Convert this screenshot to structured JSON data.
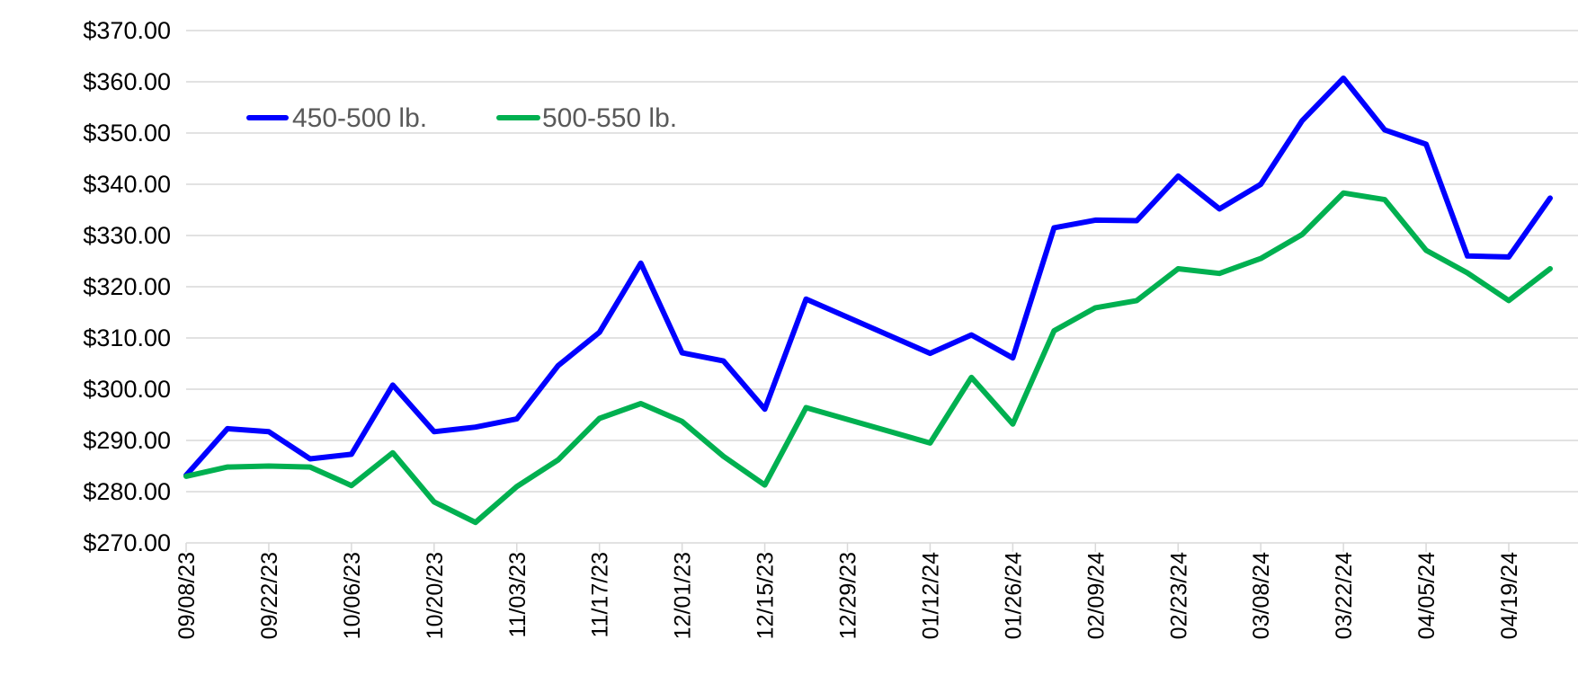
{
  "chart_data": {
    "type": "line",
    "title": "",
    "xlabel": "",
    "ylabel": "",
    "ylim": [
      270,
      370
    ],
    "y_ticks": [
      "$270.00",
      "$280.00",
      "$290.00",
      "$300.00",
      "$310.00",
      "$320.00",
      "$330.00",
      "$340.00",
      "$350.00",
      "$360.00",
      "$370.00"
    ],
    "x_ticks": [
      "09/08/23",
      "09/22/23",
      "10/06/23",
      "10/20/23",
      "11/03/23",
      "11/17/23",
      "12/01/23",
      "12/15/23",
      "12/29/23",
      "01/12/24",
      "01/26/24",
      "02/09/24",
      "02/23/24",
      "03/08/24",
      "03/22/24",
      "04/05/24",
      "04/19/24"
    ],
    "grid": true,
    "legend_position": "top-left",
    "x": [
      "09/08/23",
      "09/15/23",
      "09/22/23",
      "09/29/23",
      "10/06/23",
      "10/13/23",
      "10/20/23",
      "10/27/23",
      "11/03/23",
      "11/10/23",
      "11/17/23",
      "11/24/23",
      "12/01/23",
      "12/08/23",
      "12/15/23",
      "12/22/23",
      "01/12/24",
      "01/19/24",
      "01/26/24",
      "02/02/24",
      "02/09/24",
      "02/16/24",
      "02/23/24",
      "03/01/24",
      "03/08/24",
      "03/15/24",
      "03/22/24",
      "03/29/24",
      "04/05/24",
      "04/12/24",
      "04/19/24",
      "04/26/24"
    ],
    "series": [
      {
        "name": "450-500 lb.",
        "color": "#0000FF",
        "values": [
          283.2,
          292.3,
          291.7,
          286.4,
          287.3,
          300.8,
          291.7,
          292.6,
          294.2,
          304.6,
          311.1,
          324.6,
          307.1,
          305.5,
          296.1,
          317.6,
          307.0,
          310.6,
          306.1,
          331.5,
          333.0,
          332.9,
          341.6,
          335.2,
          340.0,
          352.4,
          360.7,
          350.6,
          347.8,
          326.0,
          325.8,
          337.3
        ]
      },
      {
        "name": "500-550 lb.",
        "color": "#00B050",
        "values": [
          283.0,
          284.8,
          285.0,
          284.8,
          281.2,
          287.6,
          278.0,
          274.0,
          281.0,
          286.2,
          294.3,
          297.2,
          293.7,
          286.9,
          281.3,
          296.4,
          289.5,
          302.3,
          293.2,
          311.4,
          315.9,
          317.3,
          323.5,
          322.6,
          325.5,
          330.2,
          338.3,
          337.0,
          327.1,
          322.7,
          317.3,
          323.5
        ]
      }
    ]
  }
}
